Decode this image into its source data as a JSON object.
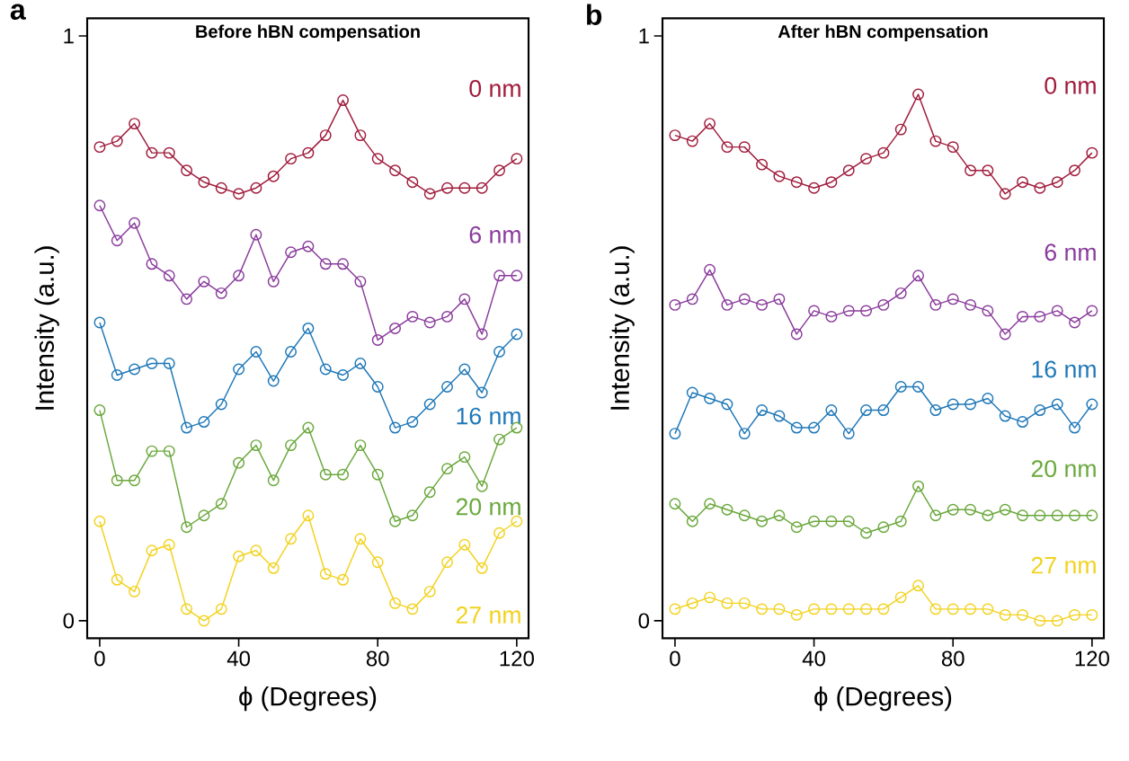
{
  "chart_data": [
    {
      "type": "line",
      "title": "Before hBN compensation",
      "xlabel": "ϕ (Degrees)",
      "ylabel": "Intensity (a.u.)",
      "annotations": [
        "a"
      ],
      "marker": "circle",
      "x": [
        0,
        5,
        10,
        15,
        20,
        25,
        30,
        35,
        40,
        45,
        50,
        55,
        60,
        65,
        70,
        75,
        80,
        85,
        90,
        95,
        100,
        105,
        110,
        115,
        120
      ],
      "xlim": [
        -3.6,
        123.4
      ],
      "ylim": [
        -0.03,
        1.03
      ],
      "xticks": [
        0,
        40,
        80,
        120
      ],
      "yticks": [
        0,
        1
      ],
      "series": [
        {
          "name": "0 nm",
          "color": "#a01c3c",
          "values": [
            0.81,
            0.82,
            0.85,
            0.8,
            0.8,
            0.77,
            0.75,
            0.74,
            0.73,
            0.74,
            0.76,
            0.79,
            0.8,
            0.83,
            0.89,
            0.83,
            0.79,
            0.77,
            0.75,
            0.73,
            0.74,
            0.74,
            0.74,
            0.77,
            0.79
          ]
        },
        {
          "name": "6 nm",
          "color": "#8a3c9c",
          "values": [
            0.71,
            0.65,
            0.68,
            0.61,
            0.59,
            0.55,
            0.58,
            0.56,
            0.59,
            0.66,
            0.58,
            0.63,
            0.64,
            0.61,
            0.61,
            0.58,
            0.48,
            0.5,
            0.52,
            0.51,
            0.52,
            0.55,
            0.49,
            0.59,
            0.59
          ]
        },
        {
          "name": "16 nm",
          "color": "#1f78b8",
          "values": [
            0.51,
            0.42,
            0.43,
            0.44,
            0.44,
            0.33,
            0.34,
            0.37,
            0.43,
            0.46,
            0.41,
            0.46,
            0.5,
            0.43,
            0.42,
            0.44,
            0.4,
            0.33,
            0.34,
            0.37,
            0.4,
            0.43,
            0.39,
            0.46,
            0.49
          ]
        },
        {
          "name": "20 nm",
          "color": "#6aa83c",
          "values": [
            0.36,
            0.24,
            0.24,
            0.29,
            0.29,
            0.16,
            0.18,
            0.2,
            0.27,
            0.3,
            0.24,
            0.3,
            0.33,
            0.25,
            0.25,
            0.3,
            0.25,
            0.17,
            0.18,
            0.22,
            0.26,
            0.28,
            0.23,
            0.31,
            0.33
          ]
        },
        {
          "name": "27 nm",
          "color": "#f2d21e",
          "values": [
            0.17,
            0.07,
            0.05,
            0.12,
            0.13,
            0.02,
            0.0,
            0.02,
            0.11,
            0.12,
            0.09,
            0.14,
            0.18,
            0.08,
            0.07,
            0.14,
            0.1,
            0.03,
            0.02,
            0.05,
            0.1,
            0.13,
            0.09,
            0.15,
            0.17
          ]
        }
      ]
    },
    {
      "type": "line",
      "title": "After hBN compensation",
      "xlabel": "ϕ (Degrees)",
      "ylabel": "Intensity (a.u.)",
      "annotations": [
        "b"
      ],
      "marker": "circle",
      "x": [
        0,
        5,
        10,
        15,
        20,
        25,
        30,
        35,
        40,
        45,
        50,
        55,
        60,
        65,
        70,
        75,
        80,
        85,
        90,
        95,
        100,
        105,
        110,
        115,
        120
      ],
      "xlim": [
        -3.6,
        123.4
      ],
      "ylim": [
        -0.03,
        1.03
      ],
      "xticks": [
        0,
        40,
        80,
        120
      ],
      "yticks": [
        0,
        1
      ],
      "series": [
        {
          "name": "0 nm",
          "color": "#a01c3c",
          "values": [
            0.83,
            0.82,
            0.85,
            0.81,
            0.81,
            0.78,
            0.76,
            0.75,
            0.74,
            0.75,
            0.77,
            0.79,
            0.8,
            0.84,
            0.9,
            0.82,
            0.81,
            0.77,
            0.77,
            0.73,
            0.75,
            0.74,
            0.75,
            0.77,
            0.8
          ]
        },
        {
          "name": "6 nm",
          "color": "#8a3c9c",
          "values": [
            0.54,
            0.55,
            0.6,
            0.54,
            0.55,
            0.54,
            0.55,
            0.49,
            0.53,
            0.52,
            0.53,
            0.53,
            0.54,
            0.56,
            0.59,
            0.54,
            0.55,
            0.54,
            0.53,
            0.49,
            0.52,
            0.52,
            0.53,
            0.51,
            0.53
          ]
        },
        {
          "name": "16 nm",
          "color": "#1f78b8",
          "values": [
            0.32,
            0.39,
            0.38,
            0.37,
            0.32,
            0.36,
            0.35,
            0.33,
            0.33,
            0.36,
            0.32,
            0.36,
            0.36,
            0.4,
            0.4,
            0.36,
            0.37,
            0.37,
            0.38,
            0.35,
            0.34,
            0.36,
            0.37,
            0.33,
            0.37
          ]
        },
        {
          "name": "20 nm",
          "color": "#6aa83c",
          "values": [
            0.2,
            0.17,
            0.2,
            0.19,
            0.18,
            0.17,
            0.18,
            0.16,
            0.17,
            0.17,
            0.17,
            0.15,
            0.16,
            0.17,
            0.23,
            0.18,
            0.19,
            0.19,
            0.18,
            0.19,
            0.18,
            0.18,
            0.18,
            0.18,
            0.18
          ]
        },
        {
          "name": "27 nm",
          "color": "#f2d21e",
          "values": [
            0.02,
            0.03,
            0.04,
            0.03,
            0.03,
            0.02,
            0.02,
            0.01,
            0.02,
            0.02,
            0.02,
            0.02,
            0.02,
            0.04,
            0.06,
            0.02,
            0.02,
            0.02,
            0.02,
            0.01,
            0.01,
            0.0,
            0.0,
            0.01,
            0.01
          ]
        }
      ]
    }
  ]
}
